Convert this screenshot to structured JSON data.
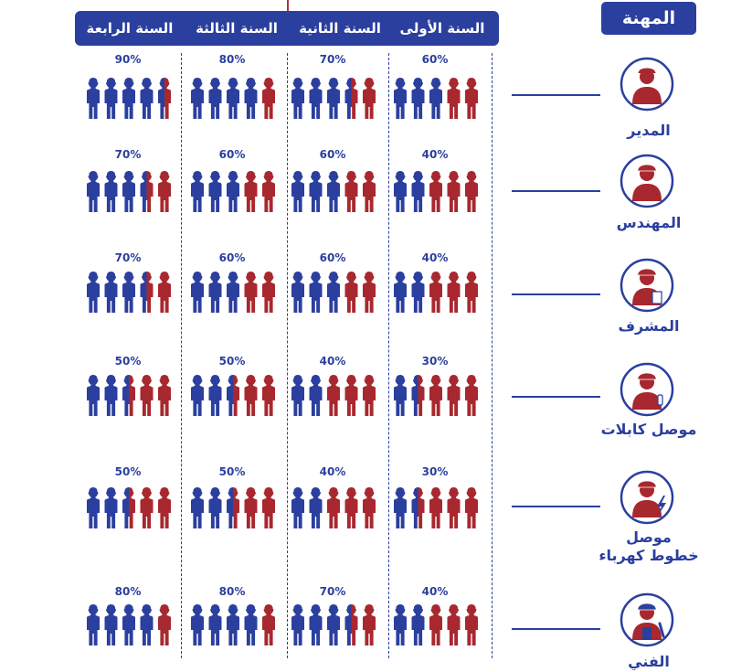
{
  "header": {
    "job_title": "المهنة",
    "years": [
      "السنة الأولى",
      "السنة الثانية",
      "السنة الثالثة",
      "السنة الرابعة"
    ]
  },
  "colors": {
    "blue": "#2b3f9e",
    "red": "#a8282f"
  },
  "chart_data": {
    "type": "table",
    "categories": [
      "السنة الأولى",
      "السنة الثانية",
      "السنة الثالثة",
      "السنة الرابعة"
    ],
    "series": [
      {
        "name": "المدير",
        "values": [
          60,
          70,
          80,
          90
        ],
        "labels": [
          "60%",
          "70%",
          "80%",
          "90%"
        ],
        "icon": "manager-icon"
      },
      {
        "name": "المهندس",
        "values": [
          40,
          60,
          60,
          70
        ],
        "labels": [
          "40%",
          "60%",
          "60%",
          "70%"
        ],
        "icon": "engineer-icon"
      },
      {
        "name": "المشرف",
        "values": [
          40,
          60,
          60,
          70
        ],
        "labels": [
          "40%",
          "60%",
          "60%",
          "70%"
        ],
        "icon": "supervisor-icon"
      },
      {
        "name": "موصل كابلات",
        "values": [
          30,
          40,
          50,
          50
        ],
        "labels": [
          "30%",
          "40%",
          "50%",
          "50%"
        ],
        "icon": "cable-jointer-icon"
      },
      {
        "name": "موصل\nخطوط كهرباء",
        "values": [
          30,
          40,
          50,
          50
        ],
        "labels": [
          "30%",
          "40%",
          "50%",
          "50%"
        ],
        "icon": "power-line-worker-icon"
      },
      {
        "name": "الفني",
        "values": [
          40,
          70,
          80,
          80
        ],
        "labels": [
          "40%",
          "70%",
          "80%",
          "80%"
        ],
        "icon": "technician-icon"
      }
    ]
  }
}
